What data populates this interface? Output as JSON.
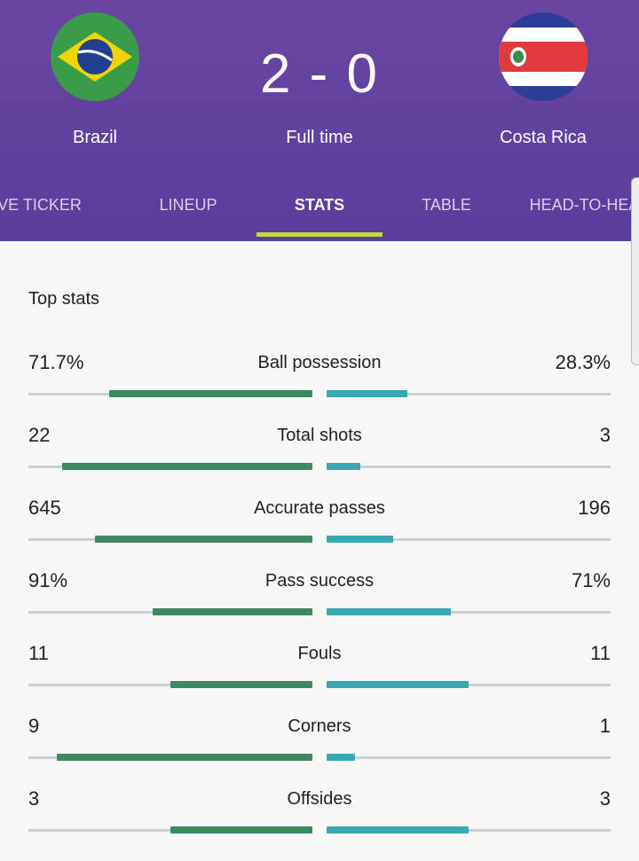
{
  "header": {
    "home_team": "Brazil",
    "away_team": "Costa Rica",
    "score": "2 - 0",
    "status": "Full time"
  },
  "tabs": [
    "LIVE TICKER",
    "LINEUP",
    "STATS",
    "TABLE",
    "HEAD-TO-HEAD"
  ],
  "active_tab": 2,
  "section_title": "Top stats",
  "stats": [
    {
      "name": "Ball possession",
      "home": {
        "value": 71.7,
        "label": "71.7%"
      },
      "away": {
        "value": 28.3,
        "label": "28.3%"
      }
    },
    {
      "name": "Total shots",
      "home": 22,
      "away": 3
    },
    {
      "name": "Accurate passes",
      "home": 645,
      "away": 196
    },
    {
      "name": "Pass success",
      "home": {
        "value": 91,
        "label": "91%"
      },
      "away": {
        "value": 71,
        "label": "71%"
      }
    },
    {
      "name": "Fouls",
      "home": 11,
      "away": 11
    },
    {
      "name": "Corners",
      "home": 9,
      "away": 1
    },
    {
      "name": "Offsides",
      "home": 3,
      "away": 3
    }
  ],
  "home_color": "#3d8a62",
  "away_color": "#3aa7b5"
}
